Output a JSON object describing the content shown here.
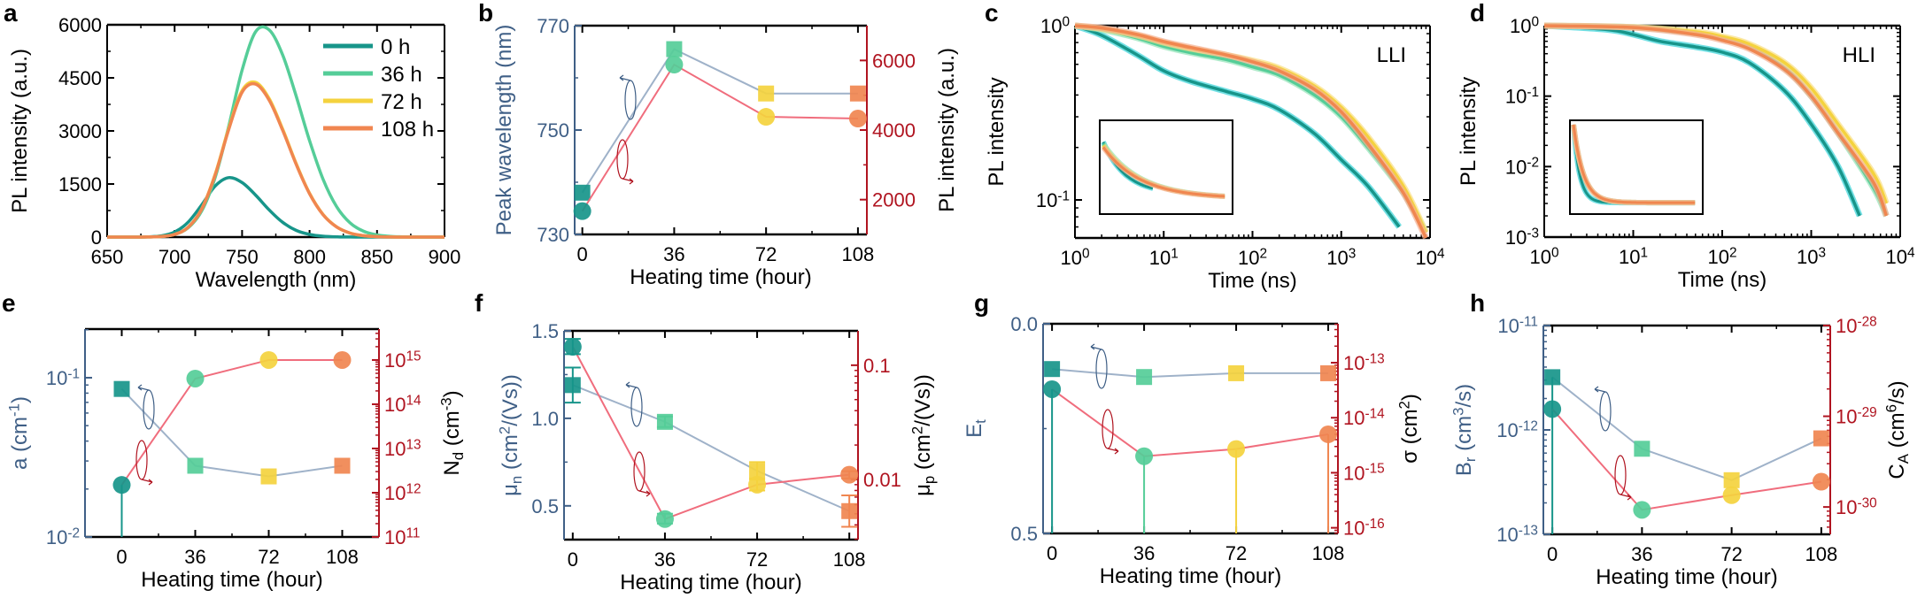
{
  "colors": {
    "h0": "#17958a",
    "h36": "#55cd98",
    "h72": "#f4d23e",
    "h108": "#f08650",
    "left_axis": "#3f5f86",
    "right_axis": "#b01420",
    "left_line": "#9fb2c9",
    "right_line": "#f06d7d"
  },
  "chart_data": [
    {
      "panel": "a",
      "type": "line",
      "x": {
        "label": "Wavelength (nm)",
        "scale": "linear",
        "range": [
          650,
          900
        ],
        "ticks": [
          650,
          700,
          750,
          800,
          850,
          900
        ],
        "tick_labels": [
          "650",
          "700",
          "750",
          "800",
          "850",
          "900"
        ]
      },
      "y": {
        "label": "PL intensity (a.u.)",
        "scale": "linear",
        "range": [
          0,
          6000
        ],
        "ticks": [
          0,
          1500,
          3000,
          4500,
          6000
        ],
        "tick_labels": [
          "0",
          "1500",
          "3000",
          "4500",
          "6000"
        ]
      },
      "legend": "top-right",
      "x_values": [
        650,
        660,
        670,
        680,
        690,
        700,
        710,
        720,
        730,
        740,
        750,
        760,
        770,
        780,
        790,
        800,
        810,
        820,
        830,
        840,
        850,
        860,
        870,
        880,
        890,
        900
      ],
      "series": [
        {
          "name": "0 h",
          "color": "#17958a",
          "values": [
            0,
            0,
            1,
            6,
            35,
            142,
            419,
            906,
            1440,
            1680,
            1540,
            1188,
            769,
            419,
            191,
            74,
            24,
            7,
            2,
            0,
            0,
            0,
            0,
            0,
            0,
            0
          ]
        },
        {
          "name": "36 h",
          "color": "#55cd98",
          "values": [
            0,
            0,
            0,
            3,
            18,
            76,
            261,
            734,
            1679,
            3118,
            4717,
            5800,
            5857,
            5155,
            3993,
            2724,
            1637,
            863,
            403,
            164,
            60,
            20,
            6,
            2,
            0,
            0
          ]
        },
        {
          "name": "72 h",
          "color": "#f4d23e",
          "values": [
            0,
            0,
            0,
            2,
            16,
            76,
            278,
            792,
            1769,
            3066,
            4139,
            4373,
            3918,
            3061,
            2085,
            1238,
            640,
            290,
            114,
            40,
            12,
            3,
            0,
            0,
            0,
            0
          ]
        },
        {
          "name": "108 h",
          "color": "#f08650",
          "values": [
            0,
            0,
            0,
            2,
            16,
            75,
            275,
            783,
            1749,
            3031,
            4092,
            4323,
            3873,
            3026,
            2061,
            1224,
            633,
            287,
            113,
            40,
            12,
            3,
            0,
            0,
            0,
            0
          ]
        }
      ]
    },
    {
      "panel": "b",
      "type": "scatter-line",
      "x": {
        "label": "Heating time (hour)",
        "scale": "linear",
        "range": [
          -3,
          111.5
        ],
        "ticks": [
          0,
          36,
          72,
          108
        ],
        "tick_labels": [
          "0",
          "36",
          "72",
          "108"
        ]
      },
      "y": {
        "label": "Peak wavelength (nm)",
        "scale": "linear",
        "range": [
          730,
          770
        ],
        "ticks": [
          730,
          750,
          770
        ],
        "tick_labels": [
          "730",
          "750",
          "770"
        ],
        "color": "#3f5f86"
      },
      "y2": {
        "label": "PL intensity (a.u.)",
        "scale": "linear",
        "range": [
          1000,
          7000
        ],
        "ticks": [
          2000,
          4000,
          6000
        ],
        "tick_labels": [
          "2000",
          "4000",
          "6000"
        ],
        "color": "#b01420"
      },
      "x_values": [
        0,
        36,
        72,
        108
      ],
      "series": [
        {
          "axis": "left",
          "marker": "square",
          "line_color": "#9fb2c9",
          "values": [
            738,
            765.5,
            757,
            757
          ]
        },
        {
          "axis": "right",
          "marker": "circle",
          "line_color": "#f06d7d",
          "values": [
            1670,
            5880,
            4380,
            4330
          ]
        }
      ]
    },
    {
      "panel": "c",
      "type": "line",
      "tag": "LLI",
      "inset": true,
      "x": {
        "label": "Time (ns)",
        "scale": "log",
        "range": [
          1,
          10000
        ],
        "ticks": [
          1,
          10,
          100,
          1000,
          10000
        ],
        "tick_labels": [
          "10^{0}",
          "10^{1}",
          "10^{2}",
          "10^{3}",
          "10^{4}"
        ]
      },
      "y": {
        "label": "PL intensity",
        "scale": "log",
        "range": [
          0.0605,
          1
        ],
        "ticks": [
          0.1,
          1
        ],
        "tick_labels": [
          "10^{-1}",
          "10^{0}"
        ]
      },
      "series": [
        {
          "name": "0 h",
          "color": "#17958a",
          "raw_color": "#37d3d8",
          "x": [
            1,
            2,
            5,
            10,
            20,
            50,
            100,
            200,
            500,
            1000,
            2000,
            4500
          ],
          "values": [
            1,
            0.88,
            0.68,
            0.55,
            0.48,
            0.42,
            0.38,
            0.33,
            0.24,
            0.17,
            0.12,
            0.07
          ]
        },
        {
          "name": "36 h",
          "color": "#55cd98",
          "raw_color": "#93e4b8",
          "x": [
            1,
            2,
            5,
            10,
            20,
            50,
            100,
            200,
            500,
            1000,
            2000,
            5000,
            9000
          ],
          "values": [
            1,
            0.95,
            0.85,
            0.76,
            0.7,
            0.64,
            0.58,
            0.52,
            0.4,
            0.3,
            0.2,
            0.11,
            0.065
          ]
        },
        {
          "name": "72 h",
          "color": "#f4d23e",
          "raw_color": "#f9de80",
          "x": [
            1,
            2,
            5,
            10,
            20,
            50,
            100,
            200,
            500,
            1000,
            2000,
            5000,
            9000
          ],
          "values": [
            1,
            0.96,
            0.88,
            0.8,
            0.74,
            0.68,
            0.63,
            0.57,
            0.45,
            0.34,
            0.23,
            0.12,
            0.065
          ]
        },
        {
          "name": "108 h",
          "color": "#f08650",
          "raw_color": "#f5ae90",
          "x": [
            1,
            2,
            5,
            10,
            20,
            50,
            100,
            200,
            500,
            1000,
            2000,
            5000,
            9000
          ],
          "values": [
            1,
            0.97,
            0.89,
            0.81,
            0.75,
            0.68,
            0.62,
            0.55,
            0.43,
            0.32,
            0.21,
            0.11,
            0.06
          ]
        }
      ]
    },
    {
      "panel": "d",
      "type": "line",
      "tag": "HLI",
      "inset": true,
      "x": {
        "label": "Time (ns)",
        "scale": "log",
        "range": [
          1,
          10000
        ],
        "ticks": [
          1,
          10,
          100,
          1000,
          10000
        ],
        "tick_labels": [
          "10^{0}",
          "10^{1}",
          "10^{2}",
          "10^{3}",
          "10^{4}"
        ]
      },
      "y": {
        "label": "PL intensity",
        "scale": "log",
        "range": [
          0.001,
          1
        ],
        "ticks": [
          0.001,
          0.01,
          0.1,
          1
        ],
        "tick_labels": [
          "10^{-3}",
          "10^{-2}",
          "10^{-1}",
          "10^{0}"
        ]
      },
      "series": [
        {
          "name": "0 h",
          "color": "#17958a",
          "raw_color": "#37d3d8",
          "x": [
            1,
            5,
            10,
            20,
            50,
            100,
            200,
            500,
            1000,
            2000,
            3500
          ],
          "values": [
            1,
            0.88,
            0.75,
            0.6,
            0.5,
            0.42,
            0.3,
            0.12,
            0.04,
            0.01,
            0.002
          ]
        },
        {
          "name": "36 h",
          "color": "#55cd98",
          "raw_color": "#93e4b8",
          "x": [
            1,
            10,
            50,
            100,
            200,
            500,
            1000,
            2000,
            5000,
            7000
          ],
          "values": [
            1,
            0.95,
            0.78,
            0.65,
            0.5,
            0.25,
            0.1,
            0.03,
            0.005,
            0.002
          ]
        },
        {
          "name": "72 h",
          "color": "#f4d23e",
          "raw_color": "#f9de80",
          "x": [
            1,
            10,
            50,
            100,
            200,
            500,
            1000,
            2000,
            5000,
            7000
          ],
          "values": [
            1,
            0.95,
            0.82,
            0.7,
            0.55,
            0.3,
            0.13,
            0.04,
            0.008,
            0.003
          ]
        },
        {
          "name": "108 h",
          "color": "#f08650",
          "raw_color": "#f5ae90",
          "x": [
            1,
            10,
            50,
            100,
            200,
            500,
            1000,
            2000,
            5000,
            7000
          ],
          "values": [
            1,
            0.94,
            0.75,
            0.62,
            0.47,
            0.24,
            0.1,
            0.03,
            0.006,
            0.002
          ]
        }
      ]
    },
    {
      "panel": "e",
      "type": "scatter-line",
      "x": {
        "label": "Heating time (hour)",
        "scale": "linear",
        "range": [
          -18,
          126
        ],
        "ticks": [
          0,
          36,
          72,
          108
        ],
        "tick_labels": [
          "0",
          "36",
          "72",
          "108"
        ]
      },
      "y": {
        "label": "a (cm^{-1})",
        "scale": "log",
        "range": [
          0.01,
          0.202
        ],
        "ticks": [
          0.01,
          0.1
        ],
        "tick_labels": [
          "10^{-2}",
          "10^{-1}"
        ],
        "color": "#3f5f86"
      },
      "y2": {
        "label": "N_{d} (cm^{-3})",
        "scale": "log",
        "range": [
          100000000000.0,
          5000000000000000.0
        ],
        "ticks": [
          100000000000.0,
          1000000000000.0,
          10000000000000.0,
          100000000000000.0,
          1000000000000000.0
        ],
        "tick_labels": [
          "10^{11}",
          "10^{12}",
          "10^{13}",
          "10^{14}",
          "10^{15}"
        ],
        "color": "#b01420"
      },
      "x_values": [
        0,
        36,
        72,
        108
      ],
      "series": [
        {
          "axis": "left",
          "marker": "square",
          "line_color": "#9fb2c9",
          "values": [
            0.085,
            0.028,
            0.024,
            0.028
          ]
        },
        {
          "axis": "right",
          "marker": "circle",
          "line_color": "#f06d7d",
          "values": [
            1500000000000.0,
            380000000000000.0,
            1000000000000000.0,
            1000000000000000.0
          ],
          "drop_to_axis": [
            true,
            false,
            false,
            false
          ]
        }
      ]
    },
    {
      "panel": "f",
      "type": "scatter-line",
      "x": {
        "label": "Heating time (hour)",
        "scale": "linear",
        "range": [
          -3.4,
          111.4
        ],
        "ticks": [
          0,
          36,
          72,
          108
        ],
        "tick_labels": [
          "0",
          "36",
          "72",
          "108"
        ]
      },
      "y": {
        "label": "μ_{n} (cm^{2}/(Vs))",
        "scale": "linear",
        "range": [
          0.307,
          1.5
        ],
        "ticks": [
          0.5,
          1.0,
          1.5
        ],
        "tick_labels": [
          "0.5",
          "1.0",
          "1.5"
        ],
        "color": "#3f5f86"
      },
      "y2": {
        "label": "μ_{p} (cm^{2}/(Vs))",
        "scale": "log",
        "range": [
          0.00297,
          0.2
        ],
        "ticks": [
          0.01,
          0.1
        ],
        "tick_labels": [
          "0.01",
          "0.1"
        ],
        "color": "#b01420"
      },
      "x_values": [
        0,
        36,
        72,
        108
      ],
      "series": [
        {
          "axis": "left",
          "marker": "square",
          "line_color": "#9fb2c9",
          "values": [
            1.19,
            0.98,
            0.7,
            0.47
          ],
          "yerr": [
            [
              1.09,
              1.29
            ],
            [
              0.95,
              1.01
            ],
            [
              0.65,
              0.75
            ],
            [
              0.38,
              0.56
            ]
          ]
        },
        {
          "axis": "right",
          "marker": "circle",
          "line_color": "#f06d7d",
          "values": [
            0.145,
            0.0045,
            0.009,
            0.011
          ],
          "yerr": [
            [
              0.125,
              0.17
            ],
            [
              0.0041,
              0.005
            ],
            [
              0.008,
              0.0102
            ],
            [
              0.0102,
              0.0118
            ]
          ]
        }
      ]
    },
    {
      "panel": "g",
      "type": "scatter-line",
      "x": {
        "label": "Heating time (hour)",
        "scale": "linear",
        "range": [
          -3.5,
          111.8
        ],
        "ticks": [
          0,
          36,
          72,
          108
        ],
        "tick_labels": [
          "0",
          "36",
          "72",
          "108"
        ]
      },
      "y": {
        "label": "E_{t}",
        "scale": "linear",
        "reversed": true,
        "range": [
          0,
          0.5
        ],
        "ticks": [
          0,
          0.5
        ],
        "tick_labels": [
          "0.0",
          "0.5"
        ],
        "color": "#3f5f86"
      },
      "y2": {
        "label": "σ (cm^{2})",
        "scale": "log",
        "range": [
          7.9e-17,
          5.1e-13
        ],
        "ticks": [
          1e-16,
          1e-15,
          1e-14,
          1e-13
        ],
        "tick_labels": [
          "10^{-16}",
          "10^{-15}",
          "10^{-14}",
          "10^{-13}"
        ],
        "color": "#b01420"
      },
      "x_values": [
        0,
        36,
        72,
        108
      ],
      "series": [
        {
          "axis": "left",
          "marker": "square",
          "line_color": "#9fb2c9",
          "values": [
            0.108,
            0.127,
            0.118,
            0.118
          ]
        },
        {
          "axis": "right",
          "marker": "circle",
          "line_color": "#f06d7d",
          "values": [
            3.3e-14,
            2e-15,
            2.7e-15,
            5e-15
          ],
          "drop_to_axis": [
            true,
            true,
            true,
            true
          ]
        }
      ]
    },
    {
      "panel": "h",
      "type": "scatter-line",
      "x": {
        "label": "Heating time (hour)",
        "scale": "linear",
        "range": [
          -3.6,
          111.6
        ],
        "ticks": [
          0,
          36,
          72,
          108
        ],
        "tick_labels": [
          "0",
          "36",
          "72",
          "108"
        ]
      },
      "y": {
        "label": "B_{r} (cm^{3}/s)",
        "scale": "log",
        "range": [
          1e-13,
          1e-11
        ],
        "ticks": [
          1e-13,
          1e-12,
          1e-11
        ],
        "tick_labels": [
          "10^{-13}",
          "10^{-12}",
          "10^{-11}"
        ],
        "color": "#3f5f86"
      },
      "y2": {
        "label": "C_{A} (cm^{6}/s)",
        "scale": "log",
        "range": [
          5e-31,
          1e-28
        ],
        "ticks": [
          1e-30,
          1e-29,
          1e-28
        ],
        "tick_labels": [
          "10^{-30}",
          "10^{-29}",
          "10^{-28}"
        ],
        "color": "#b01420"
      },
      "x_values": [
        0,
        36,
        72,
        108
      ],
      "series": [
        {
          "axis": "left",
          "marker": "square",
          "line_color": "#9fb2c9",
          "values": [
            3.2e-12,
            6.6e-13,
            3.3e-13,
            8.3e-13
          ],
          "drop_to_axis": [
            true,
            false,
            false,
            false
          ]
        },
        {
          "axis": "right",
          "marker": "circle",
          "line_color": "#f06d7d",
          "values": [
            1.2e-29,
            9.3e-31,
            1.35e-30,
            1.9e-30
          ]
        }
      ]
    }
  ]
}
